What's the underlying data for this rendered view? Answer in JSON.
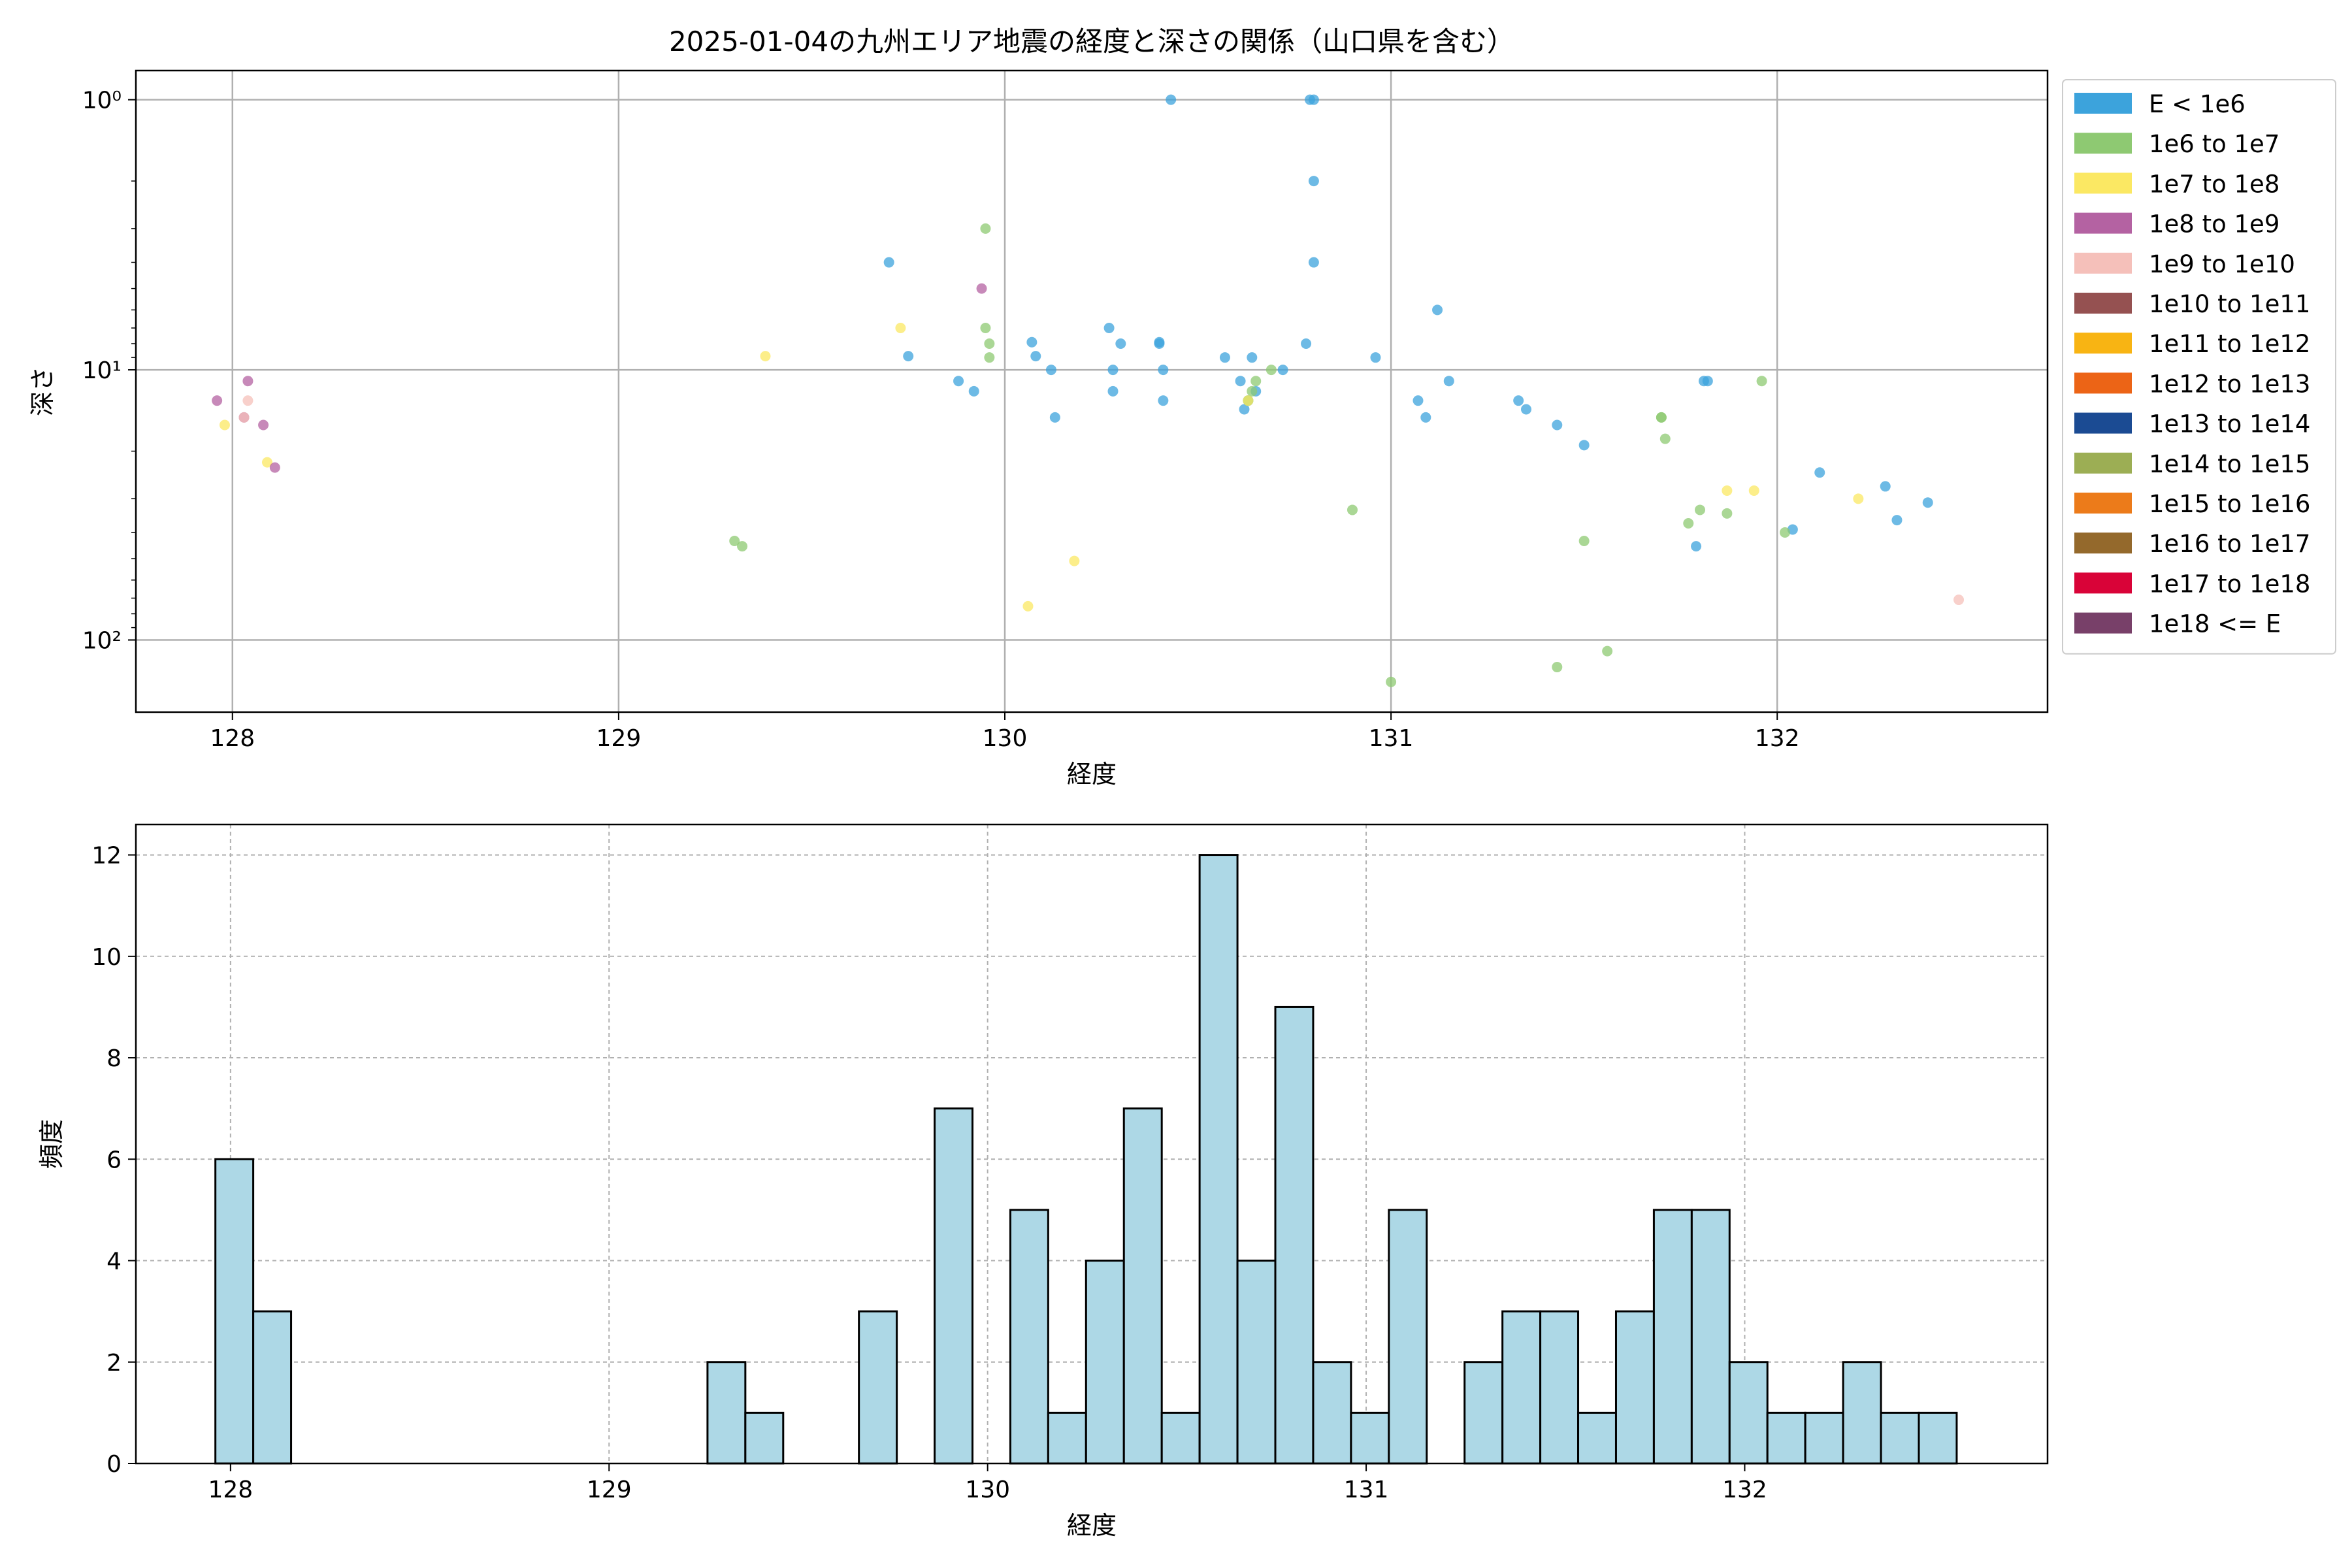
{
  "chart_data": [
    {
      "type": "scatter",
      "title": "2025-01-04の九州エリア地震の経度と深さの関係（山口県を含む）",
      "xlabel": "経度",
      "ylabel": "深さ",
      "xlim": [
        127.75,
        132.7
      ],
      "ylim": [
        185,
        0.78
      ],
      "yscale": "log",
      "y_inverted": true,
      "grid": true,
      "x_ticks": [
        "128",
        "129",
        "130",
        "131",
        "132"
      ],
      "x_tick_values": [
        128,
        129,
        130,
        131,
        132
      ],
      "y_ticks": [
        "10⁰",
        "10¹",
        "10²"
      ],
      "y_tick_values": [
        1,
        10,
        100
      ],
      "legend_position": "outside-right",
      "legend": [
        {
          "label": "E < 1e6",
          "color": "#3ca3dc"
        },
        {
          "label": "1e6 to 1e7",
          "color": "#8ec972"
        },
        {
          "label": "1e7 to 1e8",
          "color": "#fbe863"
        },
        {
          "label": "1e8 to 1e9",
          "color": "#b462a2"
        },
        {
          "label": "1e9 to 1e10",
          "color": "#f5c0ba"
        },
        {
          "label": "1e10 to 1e11",
          "color": "#955151"
        },
        {
          "label": "1e11 to 1e12",
          "color": "#f8b413"
        },
        {
          "label": "1e12 to 1e13",
          "color": "#ec6416"
        },
        {
          "label": "1e13 to 1e14",
          "color": "#1b4b93"
        },
        {
          "label": "1e14 to 1e15",
          "color": "#9cae54"
        },
        {
          "label": "1e15 to 1e16",
          "color": "#ec7b1a"
        },
        {
          "label": "1e16 to 1e17",
          "color": "#94692c"
        },
        {
          "label": "1e17 to 1e18",
          "color": "#d90338"
        },
        {
          "label": "1e18 <= E",
          "color": "#784069"
        }
      ],
      "series": [
        {
          "class": 0,
          "points": [
            [
              129.7,
              4
            ],
            [
              129.75,
              8.9
            ],
            [
              129.88,
              11
            ],
            [
              129.92,
              12
            ],
            [
              130.07,
              7.9
            ],
            [
              130.08,
              8.9
            ],
            [
              130.12,
              10
            ],
            [
              130.13,
              15
            ],
            [
              130.27,
              7
            ],
            [
              130.28,
              10
            ],
            [
              130.28,
              12
            ],
            [
              130.3,
              8
            ],
            [
              130.4,
              7.9
            ],
            [
              130.4,
              8
            ],
            [
              130.41,
              10
            ],
            [
              130.41,
              13
            ],
            [
              130.43,
              1
            ],
            [
              130.57,
              9
            ],
            [
              130.61,
              11
            ],
            [
              130.62,
              14
            ],
            [
              130.63,
              13
            ],
            [
              130.64,
              9
            ],
            [
              130.65,
              12
            ],
            [
              130.72,
              10
            ],
            [
              130.78,
              8
            ],
            [
              130.79,
              1
            ],
            [
              130.8,
              1
            ],
            [
              130.8,
              2
            ],
            [
              130.8,
              4
            ],
            [
              130.96,
              9
            ],
            [
              131.07,
              13
            ],
            [
              131.09,
              15
            ],
            [
              131.12,
              6
            ],
            [
              131.15,
              11
            ],
            [
              131.33,
              13
            ],
            [
              131.35,
              14
            ],
            [
              131.43,
              16
            ],
            [
              131.5,
              19
            ],
            [
              131.79,
              45
            ],
            [
              131.81,
              11
            ],
            [
              131.82,
              11
            ],
            [
              132.04,
              39
            ],
            [
              132.11,
              24
            ],
            [
              132.28,
              27
            ],
            [
              132.31,
              36
            ],
            [
              132.39,
              31
            ]
          ]
        },
        {
          "class": 1,
          "points": [
            [
              129.3,
              43
            ],
            [
              129.32,
              45
            ],
            [
              129.95,
              3
            ],
            [
              129.95,
              7
            ],
            [
              129.96,
              8
            ],
            [
              129.96,
              9
            ],
            [
              130.63,
              13
            ],
            [
              130.64,
              12
            ],
            [
              130.65,
              11
            ],
            [
              130.69,
              10
            ],
            [
              130.9,
              33
            ],
            [
              131.0,
              143
            ],
            [
              131.43,
              126
            ],
            [
              131.5,
              43
            ],
            [
              131.56,
              110
            ],
            [
              131.7,
              15
            ],
            [
              131.7,
              15
            ],
            [
              131.71,
              18
            ],
            [
              131.77,
              37
            ],
            [
              131.8,
              33
            ],
            [
              131.87,
              34
            ],
            [
              131.96,
              11
            ],
            [
              132.02,
              40
            ]
          ]
        },
        {
          "class": 2,
          "points": [
            [
              127.98,
              16
            ],
            [
              128.09,
              22
            ],
            [
              129.38,
              8.9
            ],
            [
              129.73,
              7
            ],
            [
              130.06,
              75
            ],
            [
              130.18,
              51
            ],
            [
              130.63,
              13
            ],
            [
              131.87,
              28
            ],
            [
              131.94,
              28
            ],
            [
              132.21,
              30
            ]
          ]
        },
        {
          "class": 3,
          "points": [
            [
              127.96,
              13
            ],
            [
              128.03,
              15
            ],
            [
              128.04,
              11
            ],
            [
              128.08,
              16
            ],
            [
              128.11,
              23
            ],
            [
              129.94,
              5
            ]
          ]
        },
        {
          "class": 4,
          "points": [
            [
              128.03,
              15
            ],
            [
              128.04,
              13
            ],
            [
              132.47,
              71
            ]
          ]
        }
      ]
    },
    {
      "type": "bar",
      "subtype": "histogram",
      "xlabel": "経度",
      "ylabel": "頻度",
      "xlim": [
        127.75,
        132.8
      ],
      "ylim": [
        0,
        12.6
      ],
      "grid": true,
      "bar_color": "#add8e6",
      "edge_color": "#000000",
      "x_ticks": [
        "128",
        "129",
        "130",
        "131",
        "132"
      ],
      "x_tick_values": [
        128,
        129,
        130,
        131,
        132
      ],
      "y_ticks": [
        "0",
        "2",
        "4",
        "6",
        "8",
        "10",
        "12"
      ],
      "y_tick_values": [
        0,
        2,
        4,
        6,
        8,
        10,
        12
      ],
      "bin_start": 127.96,
      "bin_width": 0.1,
      "values": [
        6,
        3,
        0,
        0,
        0,
        0,
        0,
        0,
        0,
        0,
        0,
        0,
        0,
        2,
        1,
        0,
        0,
        3,
        0,
        7,
        0,
        5,
        1,
        4,
        7,
        1,
        12,
        4,
        9,
        2,
        1,
        5,
        0,
        2,
        3,
        3,
        1,
        3,
        5,
        5,
        2,
        1,
        1,
        2,
        1,
        1
      ]
    }
  ]
}
